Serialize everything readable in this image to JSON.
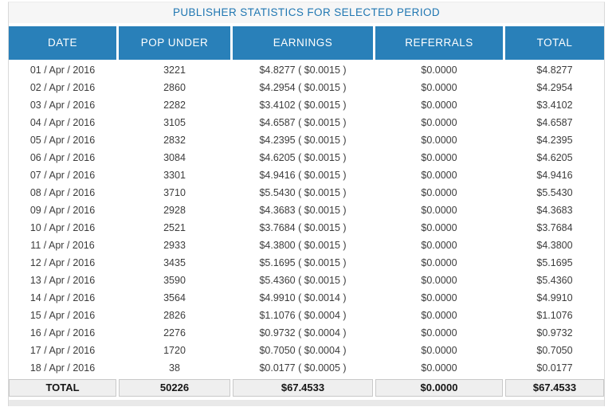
{
  "panel": {
    "title": "PUBLISHER STATISTICS FOR SELECTED PERIOD"
  },
  "table": {
    "columns": [
      "DATE",
      "POP UNDER",
      "EARNINGS",
      "REFERRALS",
      "TOTAL"
    ],
    "rows": [
      {
        "date": "01 / Apr / 2016",
        "pop_under": "3221",
        "earnings": "$4.8277 ( $0.0015 )",
        "referrals": "$0.0000",
        "total": "$4.8277"
      },
      {
        "date": "02 / Apr / 2016",
        "pop_under": "2860",
        "earnings": "$4.2954 ( $0.0015 )",
        "referrals": "$0.0000",
        "total": "$4.2954"
      },
      {
        "date": "03 / Apr / 2016",
        "pop_under": "2282",
        "earnings": "$3.4102 ( $0.0015 )",
        "referrals": "$0.0000",
        "total": "$3.4102"
      },
      {
        "date": "04 / Apr / 2016",
        "pop_under": "3105",
        "earnings": "$4.6587 ( $0.0015 )",
        "referrals": "$0.0000",
        "total": "$4.6587"
      },
      {
        "date": "05 / Apr / 2016",
        "pop_under": "2832",
        "earnings": "$4.2395 ( $0.0015 )",
        "referrals": "$0.0000",
        "total": "$4.2395"
      },
      {
        "date": "06 / Apr / 2016",
        "pop_under": "3084",
        "earnings": "$4.6205 ( $0.0015 )",
        "referrals": "$0.0000",
        "total": "$4.6205"
      },
      {
        "date": "07 / Apr / 2016",
        "pop_under": "3301",
        "earnings": "$4.9416 ( $0.0015 )",
        "referrals": "$0.0000",
        "total": "$4.9416"
      },
      {
        "date": "08 / Apr / 2016",
        "pop_under": "3710",
        "earnings": "$5.5430 ( $0.0015 )",
        "referrals": "$0.0000",
        "total": "$5.5430"
      },
      {
        "date": "09 / Apr / 2016",
        "pop_under": "2928",
        "earnings": "$4.3683 ( $0.0015 )",
        "referrals": "$0.0000",
        "total": "$4.3683"
      },
      {
        "date": "10 / Apr / 2016",
        "pop_under": "2521",
        "earnings": "$3.7684 ( $0.0015 )",
        "referrals": "$0.0000",
        "total": "$3.7684"
      },
      {
        "date": "11 / Apr / 2016",
        "pop_under": "2933",
        "earnings": "$4.3800 ( $0.0015 )",
        "referrals": "$0.0000",
        "total": "$4.3800"
      },
      {
        "date": "12 / Apr / 2016",
        "pop_under": "3435",
        "earnings": "$5.1695 ( $0.0015 )",
        "referrals": "$0.0000",
        "total": "$5.1695"
      },
      {
        "date": "13 / Apr / 2016",
        "pop_under": "3590",
        "earnings": "$5.4360 ( $0.0015 )",
        "referrals": "$0.0000",
        "total": "$5.4360"
      },
      {
        "date": "14 / Apr / 2016",
        "pop_under": "3564",
        "earnings": "$4.9910 ( $0.0014 )",
        "referrals": "$0.0000",
        "total": "$4.9910"
      },
      {
        "date": "15 / Apr / 2016",
        "pop_under": "2826",
        "earnings": "$1.1076 ( $0.0004 )",
        "referrals": "$0.0000",
        "total": "$1.1076"
      },
      {
        "date": "16 / Apr / 2016",
        "pop_under": "2276",
        "earnings": "$0.9732 ( $0.0004 )",
        "referrals": "$0.0000",
        "total": "$0.9732"
      },
      {
        "date": "17 / Apr / 2016",
        "pop_under": "1720",
        "earnings": "$0.7050 ( $0.0004 )",
        "referrals": "$0.0000",
        "total": "$0.7050"
      },
      {
        "date": "18 / Apr / 2016",
        "pop_under": "38",
        "earnings": "$0.0177 ( $0.0005 )",
        "referrals": "$0.0000",
        "total": "$0.0177"
      }
    ],
    "totals": {
      "label": "TOTAL",
      "pop_under": "50226",
      "earnings": "$67.4533",
      "referrals": "$0.0000",
      "total": "$67.4533"
    }
  },
  "colors": {
    "header_bg": "#2980b9",
    "header_text": "#ffffff",
    "title_bg": "#f6f6f6",
    "title_text": "#2077b2",
    "body_text": "#3c3c3c",
    "total_bg": "#efefef",
    "total_border": "#c9c9c9",
    "panel_border": "#d9d9d9",
    "footer_strip": "#e9e9e9"
  }
}
